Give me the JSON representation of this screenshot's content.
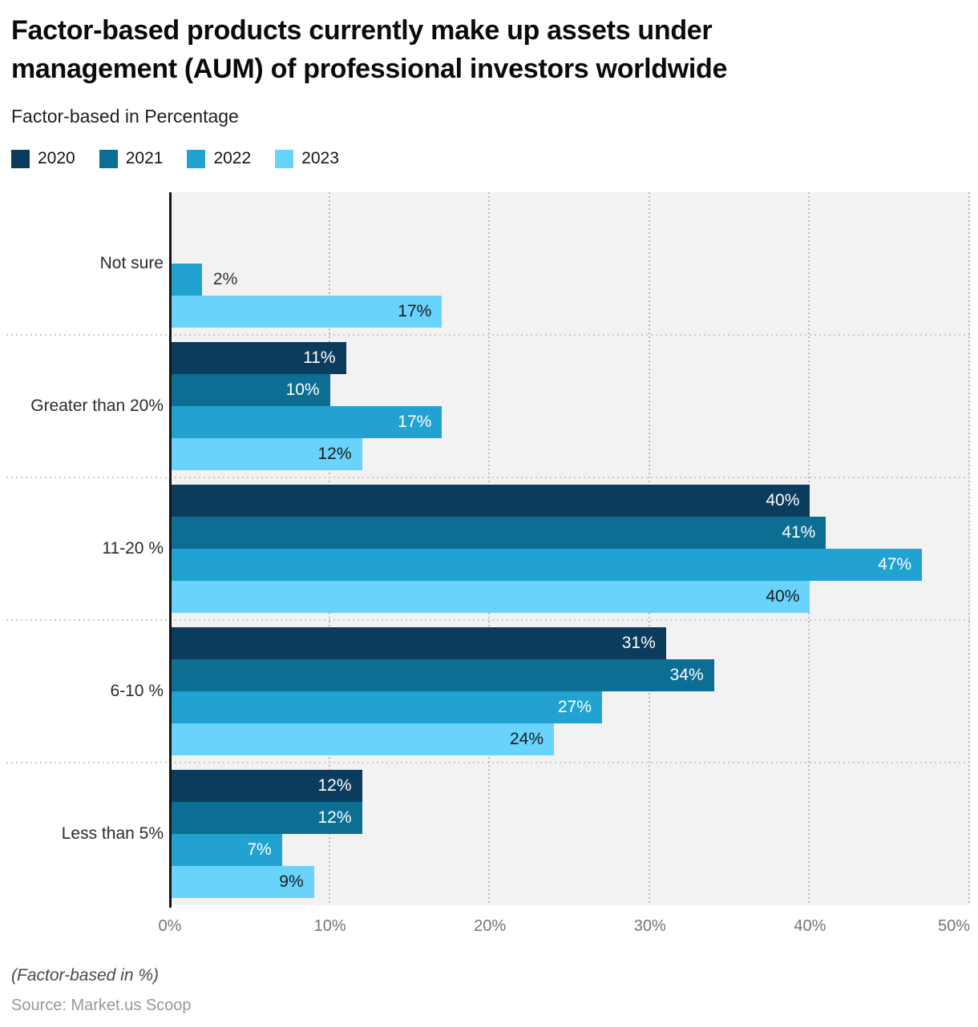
{
  "header": {
    "title_line1": "Factor-based products currently make up assets under",
    "title_line2": "management (AUM) of professional investors worldwide",
    "subtitle": "Factor-based in Percentage"
  },
  "chart_data": {
    "type": "bar",
    "orientation": "horizontal",
    "title": "Factor-based products currently make up assets under management (AUM) of professional investors worldwide",
    "subtitle": "Factor-based in Percentage",
    "categories": [
      "Not sure",
      "Greater than 20%",
      "11-20 %",
      "6-10 %",
      "Less than 5%"
    ],
    "series": [
      {
        "name": "2020",
        "color": "#0b3b5d",
        "label_color": "#ffffff",
        "values": [
          null,
          11,
          40,
          31,
          12
        ]
      },
      {
        "name": "2021",
        "color": "#0d6e94",
        "label_color": "#ffffff",
        "values": [
          null,
          10,
          41,
          34,
          12
        ]
      },
      {
        "name": "2022",
        "color": "#21a2d1",
        "label_color": "#ffffff",
        "values": [
          2,
          17,
          47,
          27,
          7
        ]
      },
      {
        "name": "2023",
        "color": "#69d3fb",
        "label_color": "#1a1a1a",
        "values": [
          17,
          12,
          40,
          24,
          9
        ]
      }
    ],
    "value_suffix": "%",
    "xlim": [
      0,
      50
    ],
    "x_ticks": [
      "0%",
      "10%",
      "20%",
      "30%",
      "40%",
      "50%"
    ],
    "grid": "vertical-dashed",
    "legend_position": "top-left",
    "plot_background": "#f2f2f2",
    "outside_label_color": "#333333"
  },
  "footer": {
    "note": "(Factor-based in %)",
    "source": "Source: Market.us Scoop"
  }
}
